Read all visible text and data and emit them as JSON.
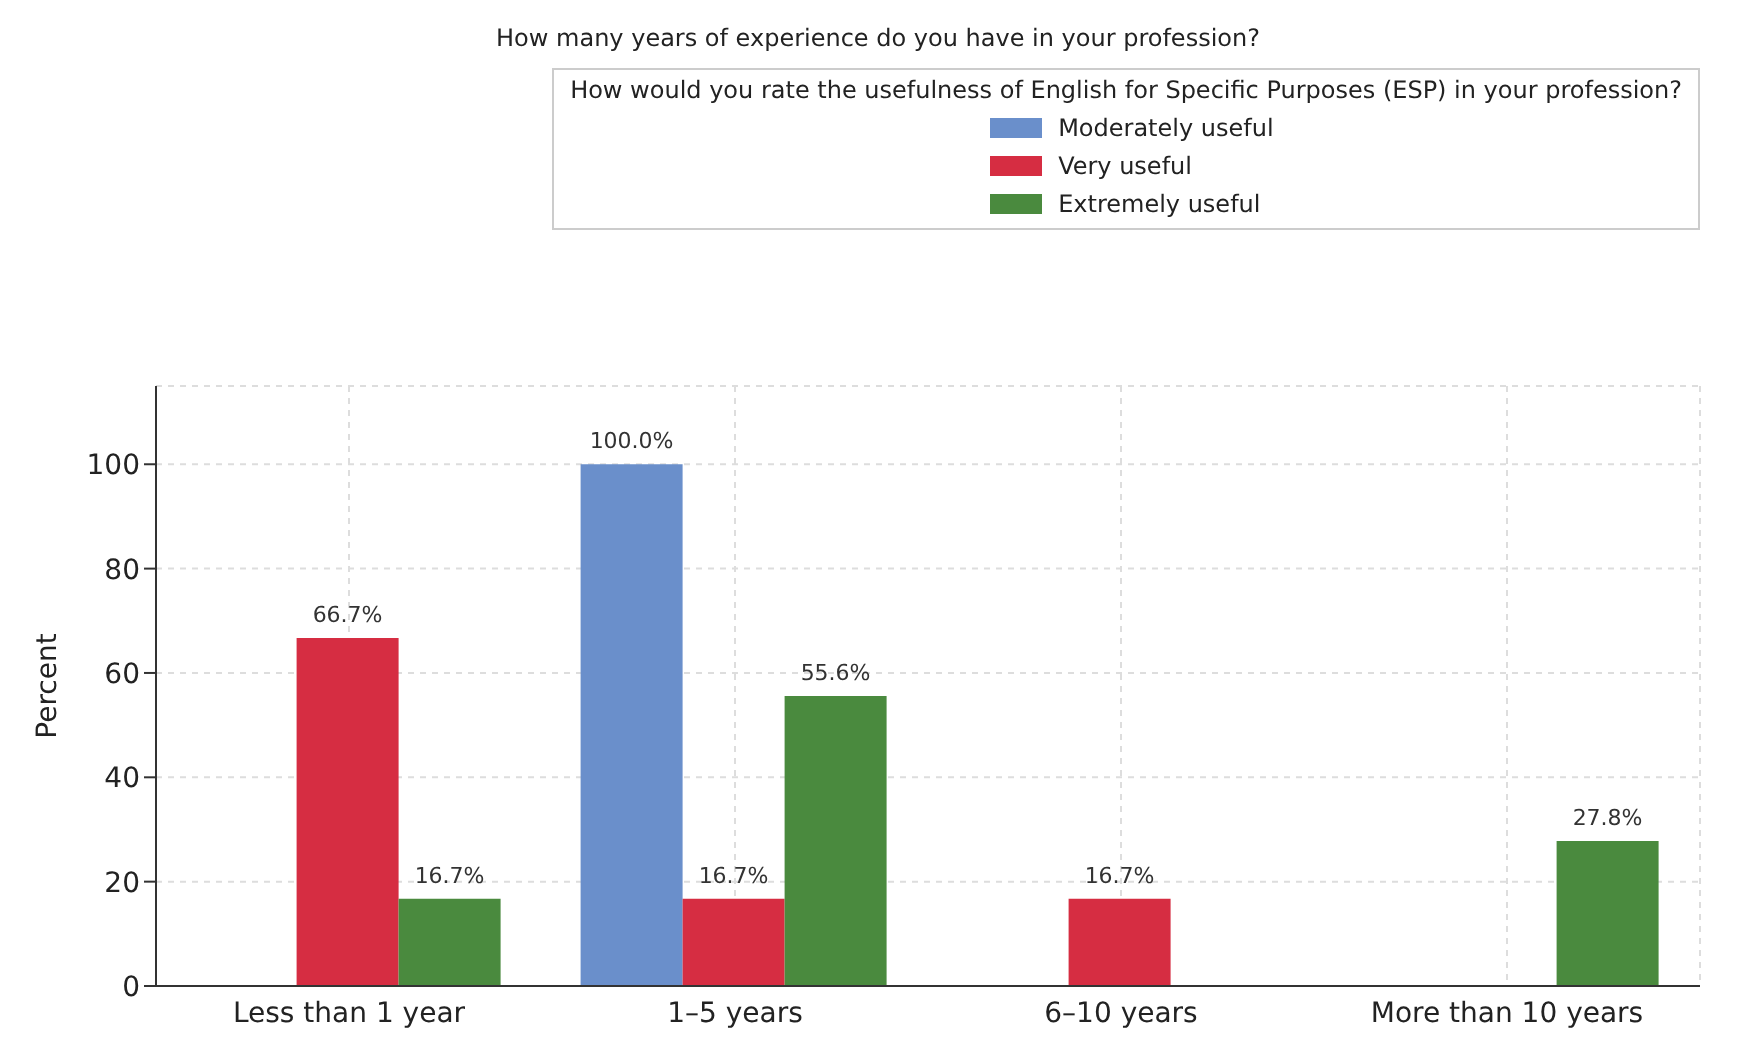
{
  "chart_data": {
    "type": "bar",
    "title": "How many years of experience do you have in your profession?",
    "ylabel": "Percent",
    "legend_title": "How would you rate the usefulness of English for Specific Purposes (ESP) in your profession?",
    "categories": [
      "Less than 1 year",
      "1–5 years",
      "6–10 years",
      "More than 10 years"
    ],
    "series": [
      {
        "name": "Moderately useful",
        "color": "#6a8fcb",
        "values": [
          null,
          100,
          null,
          null
        ],
        "value_labels": [
          null,
          "100.0%",
          null,
          null
        ]
      },
      {
        "name": "Very useful",
        "color": "#d62d42",
        "values": [
          66.7,
          16.7,
          16.7,
          null
        ],
        "value_labels": [
          "66.7%",
          "16.7%",
          "16.7%",
          null
        ]
      },
      {
        "name": "Extremely useful",
        "color": "#4a8a3e",
        "values": [
          16.7,
          55.6,
          null,
          27.8
        ],
        "value_labels": [
          "16.7%",
          "55.6%",
          null,
          "27.8%"
        ]
      }
    ],
    "ylim": [
      0,
      115
    ],
    "yticks": [
      0,
      20,
      40,
      60,
      80,
      100
    ],
    "grid": true,
    "legend": "top right"
  }
}
